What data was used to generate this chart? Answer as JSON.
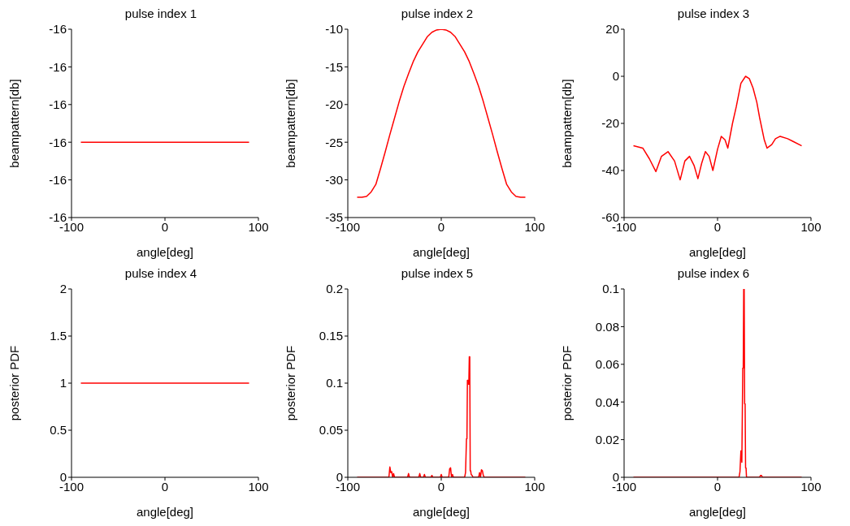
{
  "chart_data": [
    {
      "type": "line",
      "title": "pulse index 1",
      "xlabel": "angle[deg]",
      "ylabel": "beampattern[db]",
      "color": "#ff0000",
      "x": [
        -90,
        90
      ],
      "values": [
        -16,
        -16
      ],
      "xlim": [
        -100,
        100
      ],
      "xticks": [
        -100,
        0,
        100
      ],
      "ylim": [
        -16.004,
        -15.994
      ],
      "yticks": [
        {
          "value": -16.004,
          "label": "-16"
        },
        {
          "value": -16.002,
          "label": "-16"
        },
        {
          "value": -16,
          "label": "-16"
        },
        {
          "value": -15.998,
          "label": "-16"
        },
        {
          "value": -15.996,
          "label": "-16"
        },
        {
          "value": -15.994,
          "label": "-16"
        }
      ],
      "grid": false,
      "legend": false
    },
    {
      "type": "line",
      "title": "pulse index 2",
      "xlabel": "angle[deg]",
      "ylabel": "beampattern[db]",
      "color": "#ff0000",
      "x": [
        -90,
        -85,
        -80,
        -75,
        -70,
        -65,
        -60,
        -55,
        -50,
        -45,
        -40,
        -35,
        -30,
        -25,
        -20,
        -15,
        -10,
        -5,
        0,
        5,
        10,
        15,
        20,
        25,
        30,
        35,
        40,
        45,
        50,
        55,
        60,
        65,
        70,
        75,
        80,
        85,
        90
      ],
      "values": [
        -32.3,
        -32.3,
        -32.2,
        -31.6,
        -30.6,
        -28.5,
        -26.3,
        -24,
        -21.8,
        -19.6,
        -17.6,
        -15.9,
        -14.3,
        -13,
        -12,
        -11,
        -10.4,
        -10.1,
        -10,
        -10.1,
        -10.4,
        -11,
        -12,
        -13,
        -14.3,
        -15.9,
        -17.6,
        -19.6,
        -21.8,
        -24,
        -26.3,
        -28.5,
        -30.6,
        -31.6,
        -32.2,
        -32.3,
        -32.3
      ],
      "xlim": [
        -100,
        100
      ],
      "xticks": [
        -100,
        0,
        100
      ],
      "ylim": [
        -35,
        -10
      ],
      "yticks": [
        -35,
        -30,
        -25,
        -20,
        -15,
        -10
      ],
      "grid": false,
      "legend": false
    },
    {
      "type": "line",
      "title": "pulse index 3",
      "xlabel": "angle[deg]",
      "ylabel": "beampattern[db]",
      "color": "#ff0000",
      "x": [
        -90,
        -80,
        -73,
        -66,
        -60,
        -53,
        -46,
        -40,
        -35,
        -30,
        -25,
        -21,
        -17,
        -13,
        -9,
        -5,
        0,
        4,
        8,
        11,
        16,
        20,
        25,
        30,
        34,
        38,
        42,
        45,
        50,
        53,
        58,
        62,
        67,
        75,
        80,
        90
      ],
      "values": [
        -29.5,
        -30.5,
        -35,
        -40.5,
        -34,
        -32,
        -36,
        -44,
        -36,
        -34,
        -38,
        -43.5,
        -37,
        -32,
        -34,
        -40,
        -31,
        -25.5,
        -27,
        -30.5,
        -20,
        -13,
        -3,
        0,
        -1,
        -5,
        -11,
        -17.5,
        -27,
        -30.5,
        -29,
        -26.5,
        -25.5,
        -26.5,
        -27.5,
        -29.5
      ],
      "xlim": [
        -100,
        100
      ],
      "xticks": [
        -100,
        0,
        100
      ],
      "ylim": [
        -60,
        20
      ],
      "yticks": [
        -60,
        -40,
        -20,
        0,
        20
      ],
      "grid": false,
      "legend": false
    },
    {
      "type": "line",
      "title": "pulse index 4",
      "xlabel": "angle[deg]",
      "ylabel": "posterior PDF",
      "color": "#ff0000",
      "x": [
        -90,
        90
      ],
      "values": [
        1,
        1
      ],
      "xlim": [
        -100,
        100
      ],
      "xticks": [
        -100,
        0,
        100
      ],
      "ylim": [
        0,
        2
      ],
      "yticks": [
        0,
        0.5,
        1,
        1.5,
        2
      ],
      "grid": false,
      "legend": false
    },
    {
      "type": "line",
      "title": "pulse index 5",
      "xlabel": "angle[deg]",
      "ylabel": "posterior PDF",
      "color": "#ff0000",
      "x": [
        -90,
        -56,
        -55,
        -54,
        -53,
        -52,
        -51,
        -50,
        -36,
        -35,
        -34,
        -24,
        -23,
        -22,
        -19,
        -18,
        -17,
        -11,
        -10,
        -9,
        -1,
        0,
        1,
        8,
        9,
        10,
        11,
        12,
        13,
        25,
        26,
        27,
        27.5,
        28,
        28.5,
        29,
        29.5,
        30,
        30.5,
        31,
        31.5,
        32,
        33,
        34,
        40,
        41,
        42,
        43,
        44,
        45,
        46,
        90
      ],
      "values": [
        0,
        0,
        0.011,
        0.005,
        0.006,
        0,
        0.004,
        0,
        0,
        0.004,
        0,
        0,
        0.004,
        0,
        0,
        0.003,
        0,
        0,
        0.002,
        0,
        0,
        0.003,
        0,
        0,
        0.009,
        0.01,
        0,
        0.003,
        0,
        0,
        0.005,
        0.041,
        0.041,
        0.103,
        0.103,
        0.099,
        0.099,
        0.128,
        0.128,
        0.007,
        0.007,
        0.003,
        0.002,
        0,
        0,
        0.005,
        0,
        0.008,
        0.007,
        0.002,
        0,
        0
      ],
      "xlim": [
        -100,
        100
      ],
      "xticks": [
        -100,
        0,
        100
      ],
      "ylim": [
        0,
        0.2
      ],
      "yticks": [
        0,
        0.05,
        0.1,
        0.15,
        0.2
      ],
      "grid": false,
      "legend": false
    },
    {
      "type": "line",
      "title": "pulse index 6",
      "xlabel": "angle[deg]",
      "ylabel": "posterior PDF",
      "color": "#ff0000",
      "x": [
        -90,
        23,
        24,
        25,
        25.5,
        26,
        27,
        27.5,
        28,
        28.5,
        29,
        29.5,
        30,
        30.5,
        31,
        31.5,
        32,
        45,
        46,
        47,
        48,
        90
      ],
      "values": [
        0,
        0,
        0.003,
        0.014,
        0.014,
        0.008,
        0.058,
        0.058,
        0.1,
        0.1,
        0.039,
        0.039,
        0.005,
        0.005,
        0,
        0,
        0,
        0,
        0.001,
        0.001,
        0,
        0
      ],
      "xlim": [
        -100,
        100
      ],
      "xticks": [
        -100,
        0,
        100
      ],
      "ylim": [
        0,
        0.1
      ],
      "yticks": [
        0,
        0.02,
        0.04,
        0.06,
        0.08,
        0.1
      ],
      "grid": false,
      "legend": false
    }
  ]
}
